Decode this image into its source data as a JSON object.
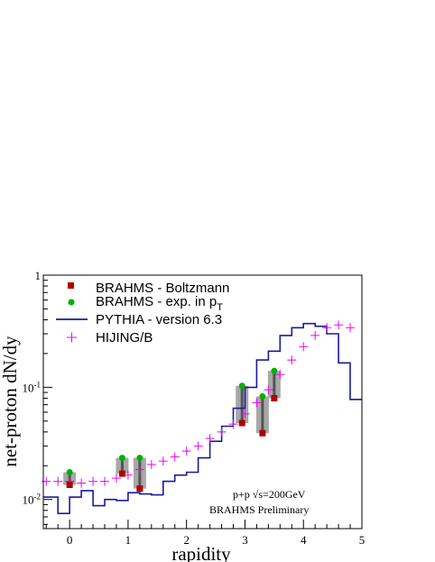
{
  "chart_data": {
    "type": "scatter",
    "xlabel": "rapidity",
    "ylabel": "net-proton dN/dy",
    "xlim": [
      -0.45,
      5.0
    ],
    "ylim": [
      0.0055,
      1.0
    ],
    "yscale": "log",
    "grid": false,
    "legend_position": "top-left",
    "x_tick_labels": [
      "0",
      "1",
      "2",
      "3",
      "4",
      "5"
    ],
    "y_tick_labels": [
      {
        "base": "10",
        "exp": "-2",
        "value": 0.01
      },
      {
        "base": "10",
        "exp": "-1",
        "value": 0.1
      },
      {
        "base": "1",
        "exp": "",
        "value": 1
      }
    ],
    "annotations": {
      "energy_prefix": "p+p ",
      "energy_sqrt": "√s",
      "energy_suffix": "=200GeV",
      "preliminary": "BRAHMS Preliminary"
    },
    "series": [
      {
        "name": "BRAHMS - Boltzmann",
        "marker": "square",
        "color": "#b00000",
        "x": [
          0.0,
          0.9,
          1.2,
          2.95,
          3.3,
          3.5
        ],
        "y": [
          0.0135,
          0.017,
          0.0125,
          0.048,
          0.039,
          0.08
        ]
      },
      {
        "name": "BRAHMS - exp. in p",
        "name_sub": "T",
        "marker": "circle",
        "color": "#00b000",
        "x": [
          0.0,
          0.9,
          1.2,
          2.95,
          3.3,
          3.5
        ],
        "y": [
          0.0175,
          0.0235,
          0.0235,
          0.103,
          0.083,
          0.14
        ]
      },
      {
        "name": "PYTHIA - version 6.3",
        "marker": "step-line",
        "color": "#1a1aa0",
        "edges": [
          -0.45,
          -0.2,
          0.0,
          0.2,
          0.4,
          0.6,
          0.8,
          1.0,
          1.2,
          1.4,
          1.6,
          1.8,
          2.0,
          2.2,
          2.4,
          2.6,
          2.8,
          3.0,
          3.2,
          3.4,
          3.6,
          3.8,
          4.0,
          4.2,
          4.4,
          4.6,
          4.8,
          5.0
        ],
        "values": [
          0.0105,
          0.0075,
          0.0105,
          0.012,
          0.0088,
          0.01,
          0.0098,
          0.0115,
          0.0112,
          0.011,
          0.0145,
          0.0165,
          0.0175,
          0.0235,
          0.033,
          0.045,
          0.065,
          0.1,
          0.175,
          0.21,
          0.29,
          0.34,
          0.37,
          0.35,
          0.3,
          0.165,
          0.078
        ]
      },
      {
        "name": "HIJING/B",
        "marker": "plus",
        "color": "#ee00ee",
        "x": [
          -0.4,
          -0.2,
          0.0,
          0.2,
          0.4,
          0.6,
          0.8,
          1.0,
          1.2,
          1.4,
          1.6,
          1.8,
          2.0,
          2.2,
          2.4,
          2.6,
          2.8,
          3.0,
          3.2,
          3.4,
          3.6,
          3.8,
          4.0,
          4.2,
          4.4,
          4.6,
          4.8
        ],
        "y": [
          0.0145,
          0.0145,
          0.0145,
          0.014,
          0.0145,
          0.0145,
          0.0155,
          0.0165,
          0.0185,
          0.0205,
          0.022,
          0.024,
          0.027,
          0.03,
          0.035,
          0.04,
          0.047,
          0.058,
          0.073,
          0.095,
          0.13,
          0.175,
          0.23,
          0.29,
          0.34,
          0.36,
          0.34
        ]
      }
    ],
    "systematic_bands": [
      {
        "x": 0.0,
        "low": 0.0135,
        "high": 0.0175
      },
      {
        "x": 0.9,
        "low": 0.017,
        "high": 0.0235
      },
      {
        "x": 1.2,
        "low": 0.0125,
        "high": 0.0235
      },
      {
        "x": 2.95,
        "low": 0.048,
        "high": 0.103
      },
      {
        "x": 3.3,
        "low": 0.039,
        "high": 0.083
      },
      {
        "x": 3.5,
        "low": 0.08,
        "high": 0.14
      }
    ]
  }
}
